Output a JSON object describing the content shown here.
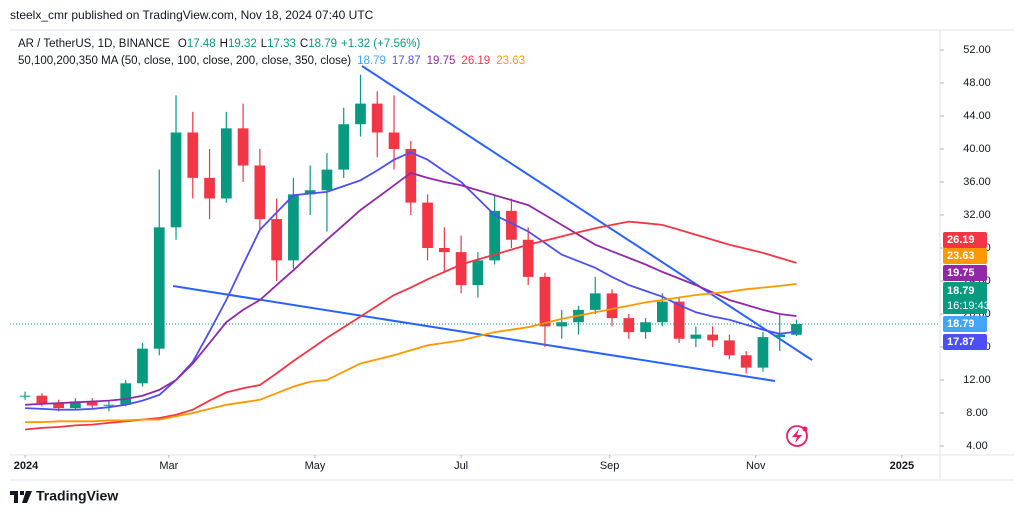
{
  "header": "steelx_cmr published on TradingView.com, Nov 18, 2024 07:40 UTC",
  "footer": "TradingView",
  "chart_data": {
    "type": "candlestick",
    "symbol": "AR / TetherUS, 1D, BINANCE",
    "ohlc_labels": [
      "O",
      "H",
      "L",
      "C"
    ],
    "ohlc_values": [
      "17.48",
      "19.32",
      "17.33",
      "18.79"
    ],
    "change": "+1.32 (+7.56%)",
    "indicator": "50,100,200,350 MA (50, close, 100, close, 200, close, 350, close)",
    "countdown": "16:19:43",
    "up_color": "#089981",
    "down_color": "#f23645",
    "source_color": "#42a5f5",
    "x": [
      0,
      7,
      14,
      21,
      28,
      35,
      42,
      49,
      56,
      63,
      70,
      77,
      84,
      91,
      98,
      105,
      112,
      119,
      126,
      133,
      140,
      147,
      154,
      161,
      168,
      175,
      182,
      189,
      196,
      203,
      210,
      217,
      224,
      231,
      238,
      245,
      252,
      259,
      266,
      273,
      280,
      287,
      294,
      301,
      308,
      315,
      322
    ],
    "open": [
      10,
      10.1,
      9.2,
      8.6,
      9.4,
      8.9,
      9.0,
      11.6,
      15.8,
      30.5,
      42.0,
      36.5,
      34.0,
      42.5,
      38.0,
      31.5,
      26.5,
      34.5,
      35.0,
      37.5,
      43.0,
      45.5,
      42.0,
      40.0,
      33.5,
      28.0,
      27.5,
      23.5,
      26.5,
      32.5,
      29.0,
      24.5,
      18.5,
      19.0,
      20.5,
      22.5,
      19.5,
      17.8,
      19.0,
      21.5,
      17.0,
      17.5,
      16.8,
      15.0,
      13.5,
      17.2,
      17.48
    ],
    "high": [
      10.6,
      10.4,
      9.6,
      9.8,
      9.8,
      9.4,
      12.0,
      16.5,
      37.5,
      46.5,
      44.5,
      40.0,
      44.5,
      45.5,
      40.0,
      34.0,
      36.5,
      38.0,
      39.5,
      45.0,
      49.0,
      47.0,
      46.5,
      41.0,
      34.5,
      30.5,
      29.5,
      27.5,
      34.5,
      34.0,
      30.5,
      25.0,
      20.5,
      21.0,
      24.5,
      23.0,
      20.0,
      19.5,
      22.5,
      22.0,
      18.5,
      18.5,
      17.5,
      15.5,
      17.8,
      19.9,
      19.32
    ],
    "low": [
      9.6,
      8.8,
      8.2,
      8.3,
      8.6,
      8.2,
      8.8,
      11.2,
      15.0,
      29.0,
      34.0,
      31.5,
      33.5,
      36.0,
      30.0,
      24.0,
      25.5,
      32.0,
      30.0,
      36.5,
      41.5,
      39.0,
      37.5,
      32.0,
      26.5,
      25.0,
      22.5,
      22.0,
      26.0,
      28.0,
      23.5,
      16.0,
      17.0,
      17.5,
      20.0,
      18.5,
      17.0,
      17.0,
      18.5,
      16.5,
      16.0,
      16.0,
      14.5,
      12.8,
      13.0,
      15.5,
      17.33
    ],
    "close": [
      10.1,
      9.2,
      8.6,
      9.4,
      8.9,
      9.0,
      11.6,
      15.8,
      30.5,
      42.0,
      36.5,
      34.0,
      42.5,
      38.0,
      31.5,
      26.5,
      34.5,
      35.0,
      37.5,
      43.0,
      45.5,
      42.0,
      40.0,
      33.5,
      28.0,
      27.5,
      23.5,
      26.5,
      32.5,
      29.0,
      24.5,
      18.5,
      19.0,
      20.5,
      22.5,
      19.5,
      17.8,
      19.0,
      21.5,
      17.0,
      17.5,
      16.8,
      15.0,
      13.5,
      17.2,
      17.5,
      18.79
    ],
    "series": [
      {
        "color": "#4c50f2",
        "values": [
          8.6,
          8.5,
          8.4,
          8.4,
          8.5,
          8.7,
          9.0,
          9.5,
          10.2,
          12.0,
          14.2,
          17.9,
          21.7,
          26.0,
          30.2,
          32.3,
          34.4,
          34.6,
          34.8,
          35.5,
          36.2,
          37.4,
          38.7,
          39.6,
          38.7,
          37.3,
          36.0,
          34.0,
          32.0,
          31.0,
          30.0,
          28.6,
          27.2,
          26.4,
          25.6,
          24.5,
          23.5,
          22.8,
          22.1,
          21.1,
          20.2,
          19.7,
          19.3,
          18.7,
          18.1,
          17.6,
          17.87
        ]
      },
      {
        "color": "#9128a8",
        "values": [
          9.0,
          9.1,
          9.2,
          9.3,
          9.4,
          9.5,
          9.7,
          10.1,
          10.8,
          12.0,
          14.0,
          16.5,
          19.0,
          20.5,
          21.7,
          23.5,
          25.3,
          27.2,
          29.0,
          30.8,
          32.6,
          34.1,
          35.6,
          37.1,
          36.5,
          36.0,
          35.6,
          35.0,
          34.4,
          33.8,
          33.2,
          32.0,
          30.8,
          29.6,
          28.4,
          27.6,
          26.8,
          26.0,
          25.1,
          24.3,
          23.5,
          22.6,
          21.7,
          21.1,
          20.5,
          20.0,
          19.75
        ]
      },
      {
        "color": "#f23645",
        "values": [
          6.0,
          6.2,
          6.3,
          6.5,
          6.6,
          6.8,
          7.0,
          7.2,
          7.4,
          7.8,
          8.4,
          9.5,
          10.5,
          11.0,
          11.4,
          12.8,
          14.3,
          15.7,
          17.1,
          18.4,
          19.7,
          21.0,
          22.3,
          23.2,
          24.2,
          25.1,
          26.0,
          26.6,
          27.2,
          27.8,
          28.4,
          28.9,
          29.4,
          29.9,
          30.4,
          30.8,
          31.2,
          31.0,
          30.8,
          30.2,
          29.6,
          29.0,
          28.4,
          27.9,
          27.4,
          26.8,
          26.19
        ]
      },
      {
        "color": "#ff9800",
        "values": [
          6.9,
          6.9,
          7.0,
          7.0,
          7.0,
          7.1,
          7.1,
          7.2,
          7.2,
          7.6,
          8.0,
          8.5,
          9.0,
          9.3,
          9.6,
          10.4,
          11.2,
          11.8,
          12.0,
          13.0,
          14.0,
          14.5,
          15.0,
          15.6,
          16.2,
          16.5,
          16.8,
          17.3,
          17.8,
          18.1,
          18.4,
          18.9,
          19.4,
          19.8,
          20.2,
          20.6,
          21.0,
          21.4,
          21.7,
          22.0,
          22.3,
          22.5,
          22.7,
          23.0,
          23.2,
          23.4,
          23.63
        ]
      }
    ],
    "xlim": [
      -6.3,
      381.9
    ],
    "xticks": [
      {
        "value": 0,
        "label": "2024"
      },
      {
        "value": 60,
        "label": "Mar"
      },
      {
        "value": 121,
        "label": "May"
      },
      {
        "value": 182,
        "label": "Jul"
      },
      {
        "value": 244,
        "label": "Sep"
      },
      {
        "value": 305,
        "label": "Nov"
      },
      {
        "value": 366,
        "label": "2025"
      }
    ],
    "ylim": [
      2.91,
      54.42
    ],
    "yticks": [
      {
        "value": 4,
        "label": "4.00"
      },
      {
        "value": 8,
        "label": "8.00"
      },
      {
        "value": 12,
        "label": "12.00"
      },
      {
        "value": 16,
        "label": "16.00"
      },
      {
        "value": 20,
        "label": "20.00"
      },
      {
        "value": 24,
        "label": "24.00"
      },
      {
        "value": 28,
        "label": "28.00"
      },
      {
        "value": 32,
        "label": "32.00"
      },
      {
        "value": 36,
        "label": "36.00"
      },
      {
        "value": 40,
        "label": "40.00"
      },
      {
        "value": 44,
        "label": "44.00"
      },
      {
        "value": 48,
        "label": "48.00"
      },
      {
        "value": 52,
        "label": "52.00"
      }
    ],
    "grid": false
  }
}
